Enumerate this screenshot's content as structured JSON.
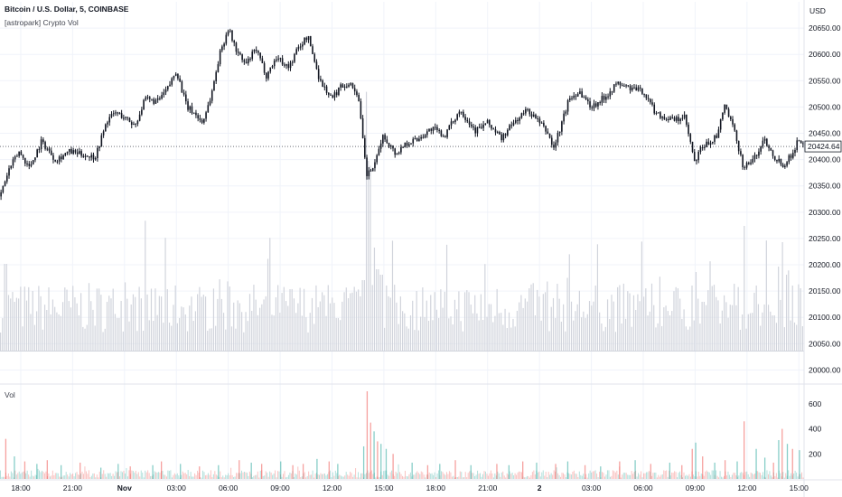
{
  "header": {
    "symbol_title": "Bitcoin / U.S. Dollar, 5, COINBASE",
    "indicator_title": "[astropark] Crypto Vol"
  },
  "price_axis": {
    "unit": "USD"
  },
  "volume_pane": {
    "label": "Vol"
  },
  "colors": {
    "candle": "#131722",
    "overlay_volume": "#d1d4dc",
    "volume_up": "#26a69a",
    "volume_down": "#ef5350",
    "grid": "#f0f3fa",
    "axis_text": "#131722",
    "pane_separator": "#e0e3eb"
  },
  "chart_data": [
    {
      "type": "line",
      "title": "Bitcoin / U.S. Dollar, 5, COINBASE",
      "ylabel": "USD",
      "ylim": [
        19975,
        20700
      ],
      "yticks": [
        20000,
        20050,
        20100,
        20150,
        20200,
        20250,
        20300,
        20350,
        20400,
        20450,
        20500,
        20550,
        20600,
        20650
      ],
      "ytick_labels": [
        "20000.00",
        "20050.00",
        "20100.00",
        "20150.00",
        "20200.00",
        "20250.00",
        "20300.00",
        "20350.00",
        "20400.00",
        "20450.00",
        "20500.00",
        "20550.00",
        "20600.00",
        "20650.00"
      ],
      "xlim": [
        16.8,
        63.3
      ],
      "xticks": [
        18,
        21,
        24,
        27,
        30,
        33,
        36,
        39,
        42,
        45,
        48,
        51,
        54,
        57,
        60,
        63
      ],
      "xtick_labels": [
        "18:00",
        "21:00",
        "Nov",
        "03:00",
        "06:00",
        "09:00",
        "12:00",
        "15:00",
        "18:00",
        "21:00",
        "2",
        "03:00",
        "06:00",
        "09:00",
        "12:00",
        "15:00"
      ],
      "x_unit": "hours from Oct 31 00:00",
      "last_price": "20424.64",
      "series": [
        {
          "x": [
            16.8,
            17.3,
            17.9,
            18.5,
            19.2,
            20.0,
            20.8,
            21.5,
            22.3,
            23.0,
            23.5,
            24.0,
            24.6,
            25.2,
            25.9,
            26.5,
            27.0,
            27.6,
            28.0,
            28.5,
            29.0,
            29.5,
            30.0,
            30.5,
            31.0,
            31.6,
            32.2,
            32.8,
            33.5,
            34.0,
            34.6,
            35.3,
            36.0,
            36.5,
            37.0,
            37.5,
            38.0,
            38.5,
            38.9,
            39.3,
            39.7,
            40.2,
            41.0,
            41.8,
            42.5,
            43.4,
            44.3,
            45.0,
            45.8,
            46.5,
            47.3,
            48.0,
            48.5,
            48.8,
            49.2,
            49.7,
            50.3,
            51.0,
            51.8,
            52.5,
            53.3,
            54.0,
            54.7,
            55.2,
            55.8,
            56.4,
            57.0,
            57.3,
            57.7,
            58.3,
            58.7,
            59.3,
            59.8,
            60.5,
            61.0,
            61.6,
            62.1,
            62.6,
            63.0,
            63.3
          ],
          "y": [
            20330,
            20380,
            20415,
            20385,
            20435,
            20400,
            20415,
            20410,
            20405,
            20475,
            20490,
            20480,
            20465,
            20515,
            20510,
            20535,
            20570,
            20500,
            20490,
            20470,
            20520,
            20600,
            20650,
            20605,
            20580,
            20610,
            20560,
            20595,
            20575,
            20610,
            20635,
            20550,
            20515,
            20540,
            20545,
            20525,
            20370,
            20390,
            20445,
            20430,
            20410,
            20430,
            20440,
            20460,
            20445,
            20495,
            20455,
            20470,
            20440,
            20470,
            20495,
            20470,
            20450,
            20420,
            20460,
            20515,
            20530,
            20500,
            20520,
            20545,
            20535,
            20530,
            20490,
            20480,
            20475,
            20480,
            20390,
            20420,
            20430,
            20445,
            20505,
            20450,
            20385,
            20405,
            20440,
            20405,
            20390,
            20410,
            20440,
            20425
          ]
        }
      ]
    },
    {
      "type": "bar",
      "title": "Vol",
      "ylim": [
        0,
        700
      ],
      "yticks": [
        200,
        400,
        600
      ],
      "ytick_labels": [
        "200",
        "400",
        "600"
      ],
      "x": [
        17.1,
        17.6,
        18.2,
        18.9,
        19.5,
        20.3,
        21.4,
        22.6,
        23.6,
        24.3,
        25.6,
        26.1,
        27.2,
        28.3,
        29.4,
        30.6,
        31.3,
        31.9,
        33.0,
        33.7,
        34.3,
        35.1,
        35.8,
        36.3,
        37.8,
        38.0,
        38.2,
        38.4,
        38.6,
        38.8,
        39.1,
        39.5,
        40.6,
        41.5,
        42.2,
        43.1,
        44.0,
        45.5,
        46.2,
        47.0,
        47.8,
        48.9,
        49.6,
        50.6,
        51.5,
        52.6,
        53.5,
        54.4,
        55.5,
        56.2,
        56.8,
        57.0,
        57.4,
        58.1,
        58.7,
        59.4,
        59.8,
        60.5,
        61.0,
        61.5,
        61.8,
        62.0,
        62.3,
        62.6,
        63.0
      ],
      "values": [
        320,
        180,
        140,
        120,
        150,
        110,
        130,
        90,
        120,
        100,
        110,
        140,
        120,
        100,
        110,
        150,
        130,
        120,
        140,
        110,
        120,
        160,
        140,
        120,
        260,
        700,
        450,
        380,
        300,
        280,
        240,
        200,
        130,
        110,
        120,
        150,
        110,
        120,
        110,
        140,
        130,
        120,
        140,
        110,
        100,
        140,
        150,
        120,
        130,
        110,
        240,
        290,
        180,
        130,
        150,
        140,
        460,
        240,
        170,
        130,
        310,
        400,
        280,
        240,
        230
      ],
      "colors": [
        "down",
        "up",
        "down",
        "up",
        "down",
        "up",
        "down",
        "up",
        "up",
        "down",
        "up",
        "down",
        "up",
        "down",
        "up",
        "down",
        "up",
        "down",
        "up",
        "down",
        "down",
        "up",
        "down",
        "up",
        "up",
        "down",
        "down",
        "up",
        "down",
        "up",
        "up",
        "down",
        "up",
        "down",
        "up",
        "down",
        "up",
        "down",
        "up",
        "down",
        "up",
        "down",
        "up",
        "down",
        "up",
        "down",
        "up",
        "down",
        "up",
        "down",
        "down",
        "up",
        "down",
        "up",
        "down",
        "up",
        "down",
        "up",
        "up",
        "down",
        "up",
        "down",
        "up",
        "down",
        "up"
      ]
    }
  ]
}
